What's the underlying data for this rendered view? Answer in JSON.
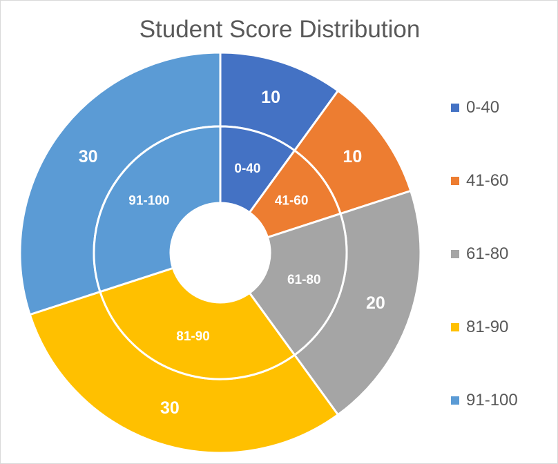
{
  "chart_data": {
    "type": "pie",
    "subtype": "nested-donut",
    "title": "Student Score Distribution",
    "categories": [
      "0-40",
      "41-60",
      "61-80",
      "81-90",
      "91-100"
    ],
    "values": [
      10,
      10,
      20,
      30,
      30
    ],
    "colors": [
      "#4472C4",
      "#ED7D31",
      "#A5A5A5",
      "#FFC000",
      "#5B9BD5"
    ],
    "outer_ring_labels": [
      "10",
      "10",
      "20",
      "30",
      "30"
    ],
    "inner_ring_labels": [
      "0-40",
      "41-60",
      "61-80",
      "81-90",
      "91-100"
    ],
    "legend_position": "right"
  }
}
